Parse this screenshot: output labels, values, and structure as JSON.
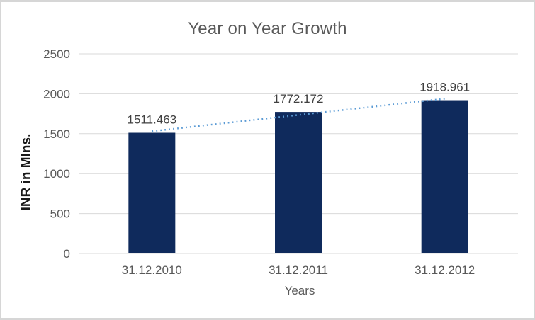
{
  "chart_data": {
    "type": "bar",
    "title": "Year on Year Growth",
    "categories": [
      "31.12.2010",
      "31.12.2011",
      "31.12.2012"
    ],
    "values": [
      1511.463,
      1772.172,
      1918.961
    ],
    "data_labels": [
      "1511.463",
      "1772.172",
      "1918.961"
    ],
    "xlabel": "Years",
    "ylabel": "INR in Mlns.",
    "ylim": [
      0,
      2500
    ],
    "yticks": [
      0,
      500,
      1000,
      1500,
      2000,
      2500
    ],
    "grid": true,
    "legend_position": "none",
    "trendline": {
      "type": "linear",
      "style": "dotted"
    },
    "colors": {
      "bar": "#0F2A5C",
      "trendline": "#5B9BD5",
      "gridline": "#D9D9D9",
      "axis_line": "#D9D9D9",
      "title_text": "#595959",
      "tick_text": "#595959",
      "data_label_text": "#404040",
      "y_axis_title_text": "#1A1A1A",
      "x_axis_title_text": "#595959",
      "chart_border": "#D6D6D6",
      "background": "#FFFFFF"
    }
  }
}
